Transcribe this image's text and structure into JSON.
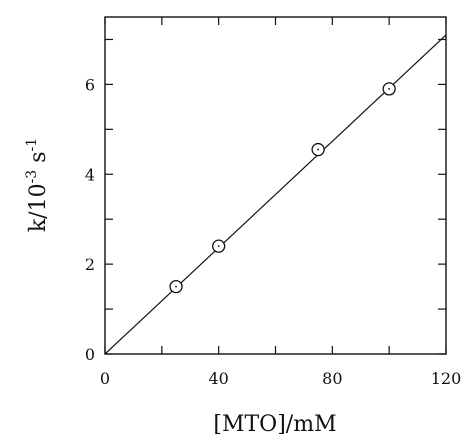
{
  "chart_data": {
    "type": "scatter",
    "xlabel": "[MTO]/mM",
    "ylabel_parts": [
      "k/10",
      "-3",
      " s",
      "-1"
    ],
    "xlim": [
      0,
      120
    ],
    "ylim": [
      0,
      7.5
    ],
    "xticks_labeled": [
      0,
      40,
      80,
      120
    ],
    "xticks_minor": [
      20,
      60,
      100
    ],
    "yticks_labeled": [
      0,
      2,
      4,
      6
    ],
    "yticks_minor": [
      1,
      3,
      5,
      7
    ],
    "grid": false,
    "points": [
      {
        "x": 25,
        "y": 1.5
      },
      {
        "x": 40,
        "y": 2.4
      },
      {
        "x": 75,
        "y": 4.55
      },
      {
        "x": 100,
        "y": 5.9
      }
    ],
    "fit_line": {
      "x": [
        0,
        120
      ],
      "y": [
        0,
        7.1
      ]
    }
  }
}
